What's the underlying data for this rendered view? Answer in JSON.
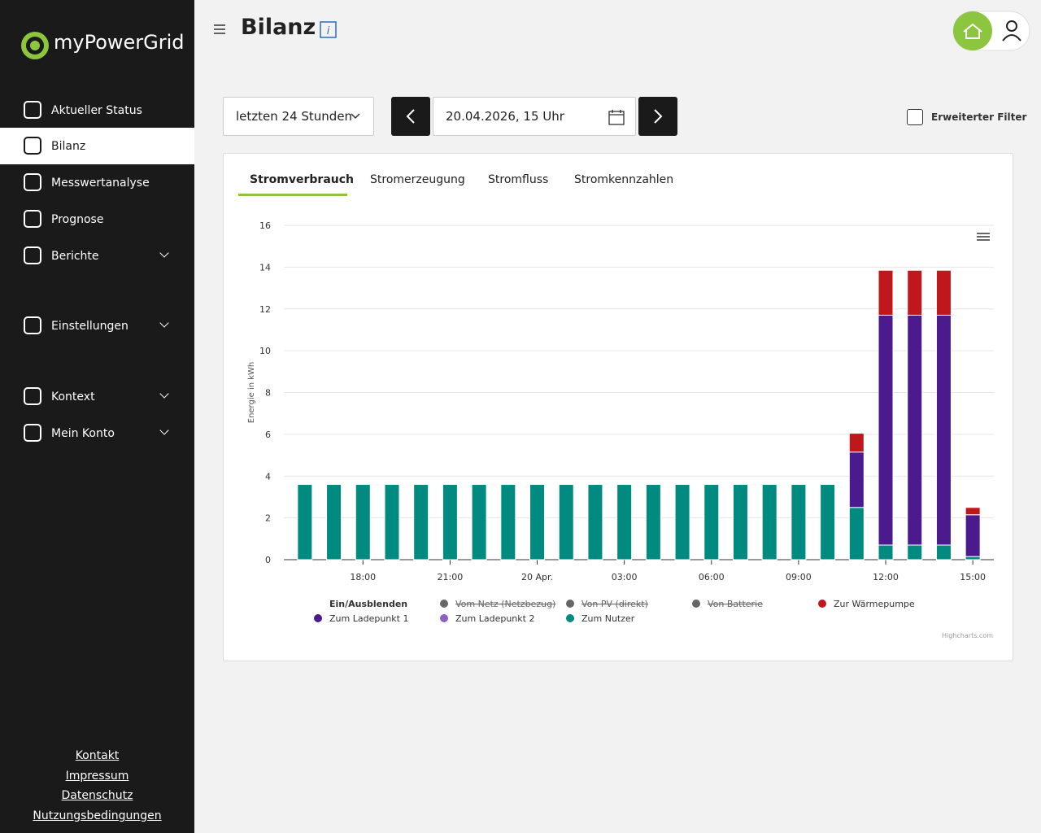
{
  "sidebar": {
    "logo": "myPowerGrid",
    "nav": [
      {
        "label": "Aktueller Status"
      },
      {
        "label": "Bilanz",
        "active": true
      },
      {
        "label": "Messwertanalyse"
      },
      {
        "label": "Prognose"
      },
      {
        "label": "Berichte",
        "expandable": true
      },
      {
        "label": "Einstellungen",
        "expandable": true
      },
      {
        "label": "Kontext",
        "expandable": true
      },
      {
        "label": "Mein Konto",
        "expandable": true
      }
    ],
    "footer_links": [
      "Kontakt",
      "Impressum",
      "Datenschutz",
      "Nutzungsbedingungen"
    ]
  },
  "header": {
    "title": "Bilanz"
  },
  "filters": {
    "range": "letzten 24 Stunden",
    "date": "20.04.2026, 15 Uhr",
    "extended_filter": "Erweiterter Filter"
  },
  "tabs": {
    "items": [
      "Stromverbrauch",
      "Stromerzeugung",
      "Stromfluss",
      "Stromkennzahlen"
    ],
    "active": "Stromverbrauch"
  },
  "chart_data": {
    "type": "stacked_bar",
    "y_axis_label": "Energie in kWh",
    "ylim": [
      0,
      16
    ],
    "yticks": [
      0,
      2,
      4,
      6,
      8,
      10,
      12,
      14,
      16
    ],
    "grid": true,
    "categories": [
      null,
      null,
      "18:00",
      null,
      null,
      "21:00",
      null,
      null,
      "20 Apr.",
      null,
      null,
      "03:00",
      null,
      null,
      "06:00",
      null,
      null,
      "09:00",
      null,
      null,
      "12:00",
      null,
      null,
      "15:00"
    ],
    "legend_title": "Ein/Ausblenden",
    "series": [
      {
        "name": "Vom Netz (Netzbezug)",
        "color": "#666666",
        "visible": false
      },
      {
        "name": "Von PV (direkt)",
        "color": "#666666",
        "visible": false
      },
      {
        "name": "Von Batterie",
        "color": "#666666",
        "visible": false
      },
      {
        "name": "Zur Wärmepumpe",
        "color": "#c0171c",
        "values": [
          0,
          0,
          0,
          0,
          0,
          0,
          0,
          0,
          0,
          0,
          0,
          0,
          0,
          0,
          0,
          0,
          0,
          0,
          0,
          0.9,
          2.15,
          2.15,
          2.15,
          0.35
        ]
      },
      {
        "name": "Zum Ladepunkt 1",
        "color": "#4b1a8c",
        "values": [
          0,
          0,
          0,
          0,
          0,
          0,
          0,
          0,
          0,
          0,
          0,
          0,
          0,
          0,
          0,
          0,
          0,
          0,
          0,
          2.65,
          11.0,
          11.0,
          11.0,
          2.0
        ]
      },
      {
        "name": "Zum Ladepunkt 2",
        "color": "#8e5fc4",
        "values": [
          0,
          0,
          0,
          0,
          0,
          0,
          0,
          0,
          0,
          0,
          0,
          0,
          0,
          0,
          0,
          0,
          0,
          0,
          0,
          0,
          0,
          0,
          0,
          0
        ]
      },
      {
        "name": "Zum Nutzer",
        "color": "#008a80",
        "values": [
          3.6,
          3.6,
          3.6,
          3.6,
          3.6,
          3.6,
          3.6,
          3.6,
          3.6,
          3.6,
          3.6,
          3.6,
          3.6,
          3.6,
          3.6,
          3.6,
          3.6,
          3.6,
          3.6,
          2.5,
          0.7,
          0.7,
          0.7,
          0.15
        ]
      }
    ],
    "credits": "Highcharts.com"
  }
}
